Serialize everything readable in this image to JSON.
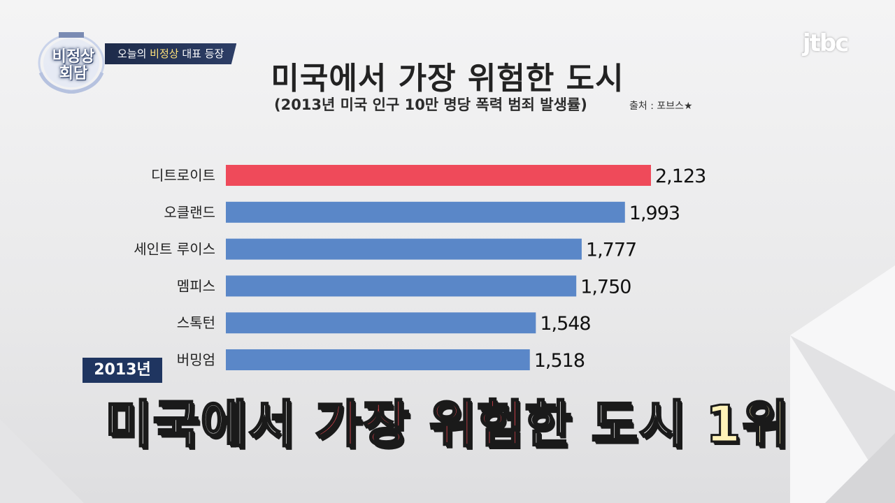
{
  "header": {
    "show_logo_text": "비정상\n회담",
    "show_label_prefix": "오늘의 ",
    "show_label_highlight": "비정상",
    "show_label_suffix": " 대표 등장",
    "channel_logo": "jtbc"
  },
  "chart_data": {
    "type": "bar",
    "orientation": "horizontal",
    "title": "미국에서 가장 위험한 도시",
    "subtitle": "(2013년 미국 인구 10만 명당 폭력 범죄 발생률)",
    "source": "출처 : 포브스",
    "categories": [
      "디트로이트",
      "오클랜드",
      "세인트 루이스",
      "멤피스",
      "스톡턴",
      "버밍엄"
    ],
    "values": [
      2123,
      1993,
      1777,
      1750,
      1548,
      1518
    ],
    "value_labels": [
      "2,123",
      "1,993",
      "1,777",
      "1,750",
      "1,548",
      "1,518"
    ],
    "colors": [
      "#ef4a5a",
      "#5a87c8",
      "#5a87c8",
      "#5a87c8",
      "#5a87c8",
      "#5a87c8"
    ],
    "xlim": [
      0,
      2123
    ],
    "grid": false,
    "legend": "none"
  },
  "caption": {
    "year_badge": "2013년",
    "part1": "미국에서 ",
    "part2": "가장 위험",
    "part3": "한 도시 ",
    "part4": "1위"
  },
  "colors": {
    "highlight_bar": "#ef4a5a",
    "bar": "#5a87c8",
    "caption_red": "#ff4a55",
    "badge": "#1f3560"
  }
}
